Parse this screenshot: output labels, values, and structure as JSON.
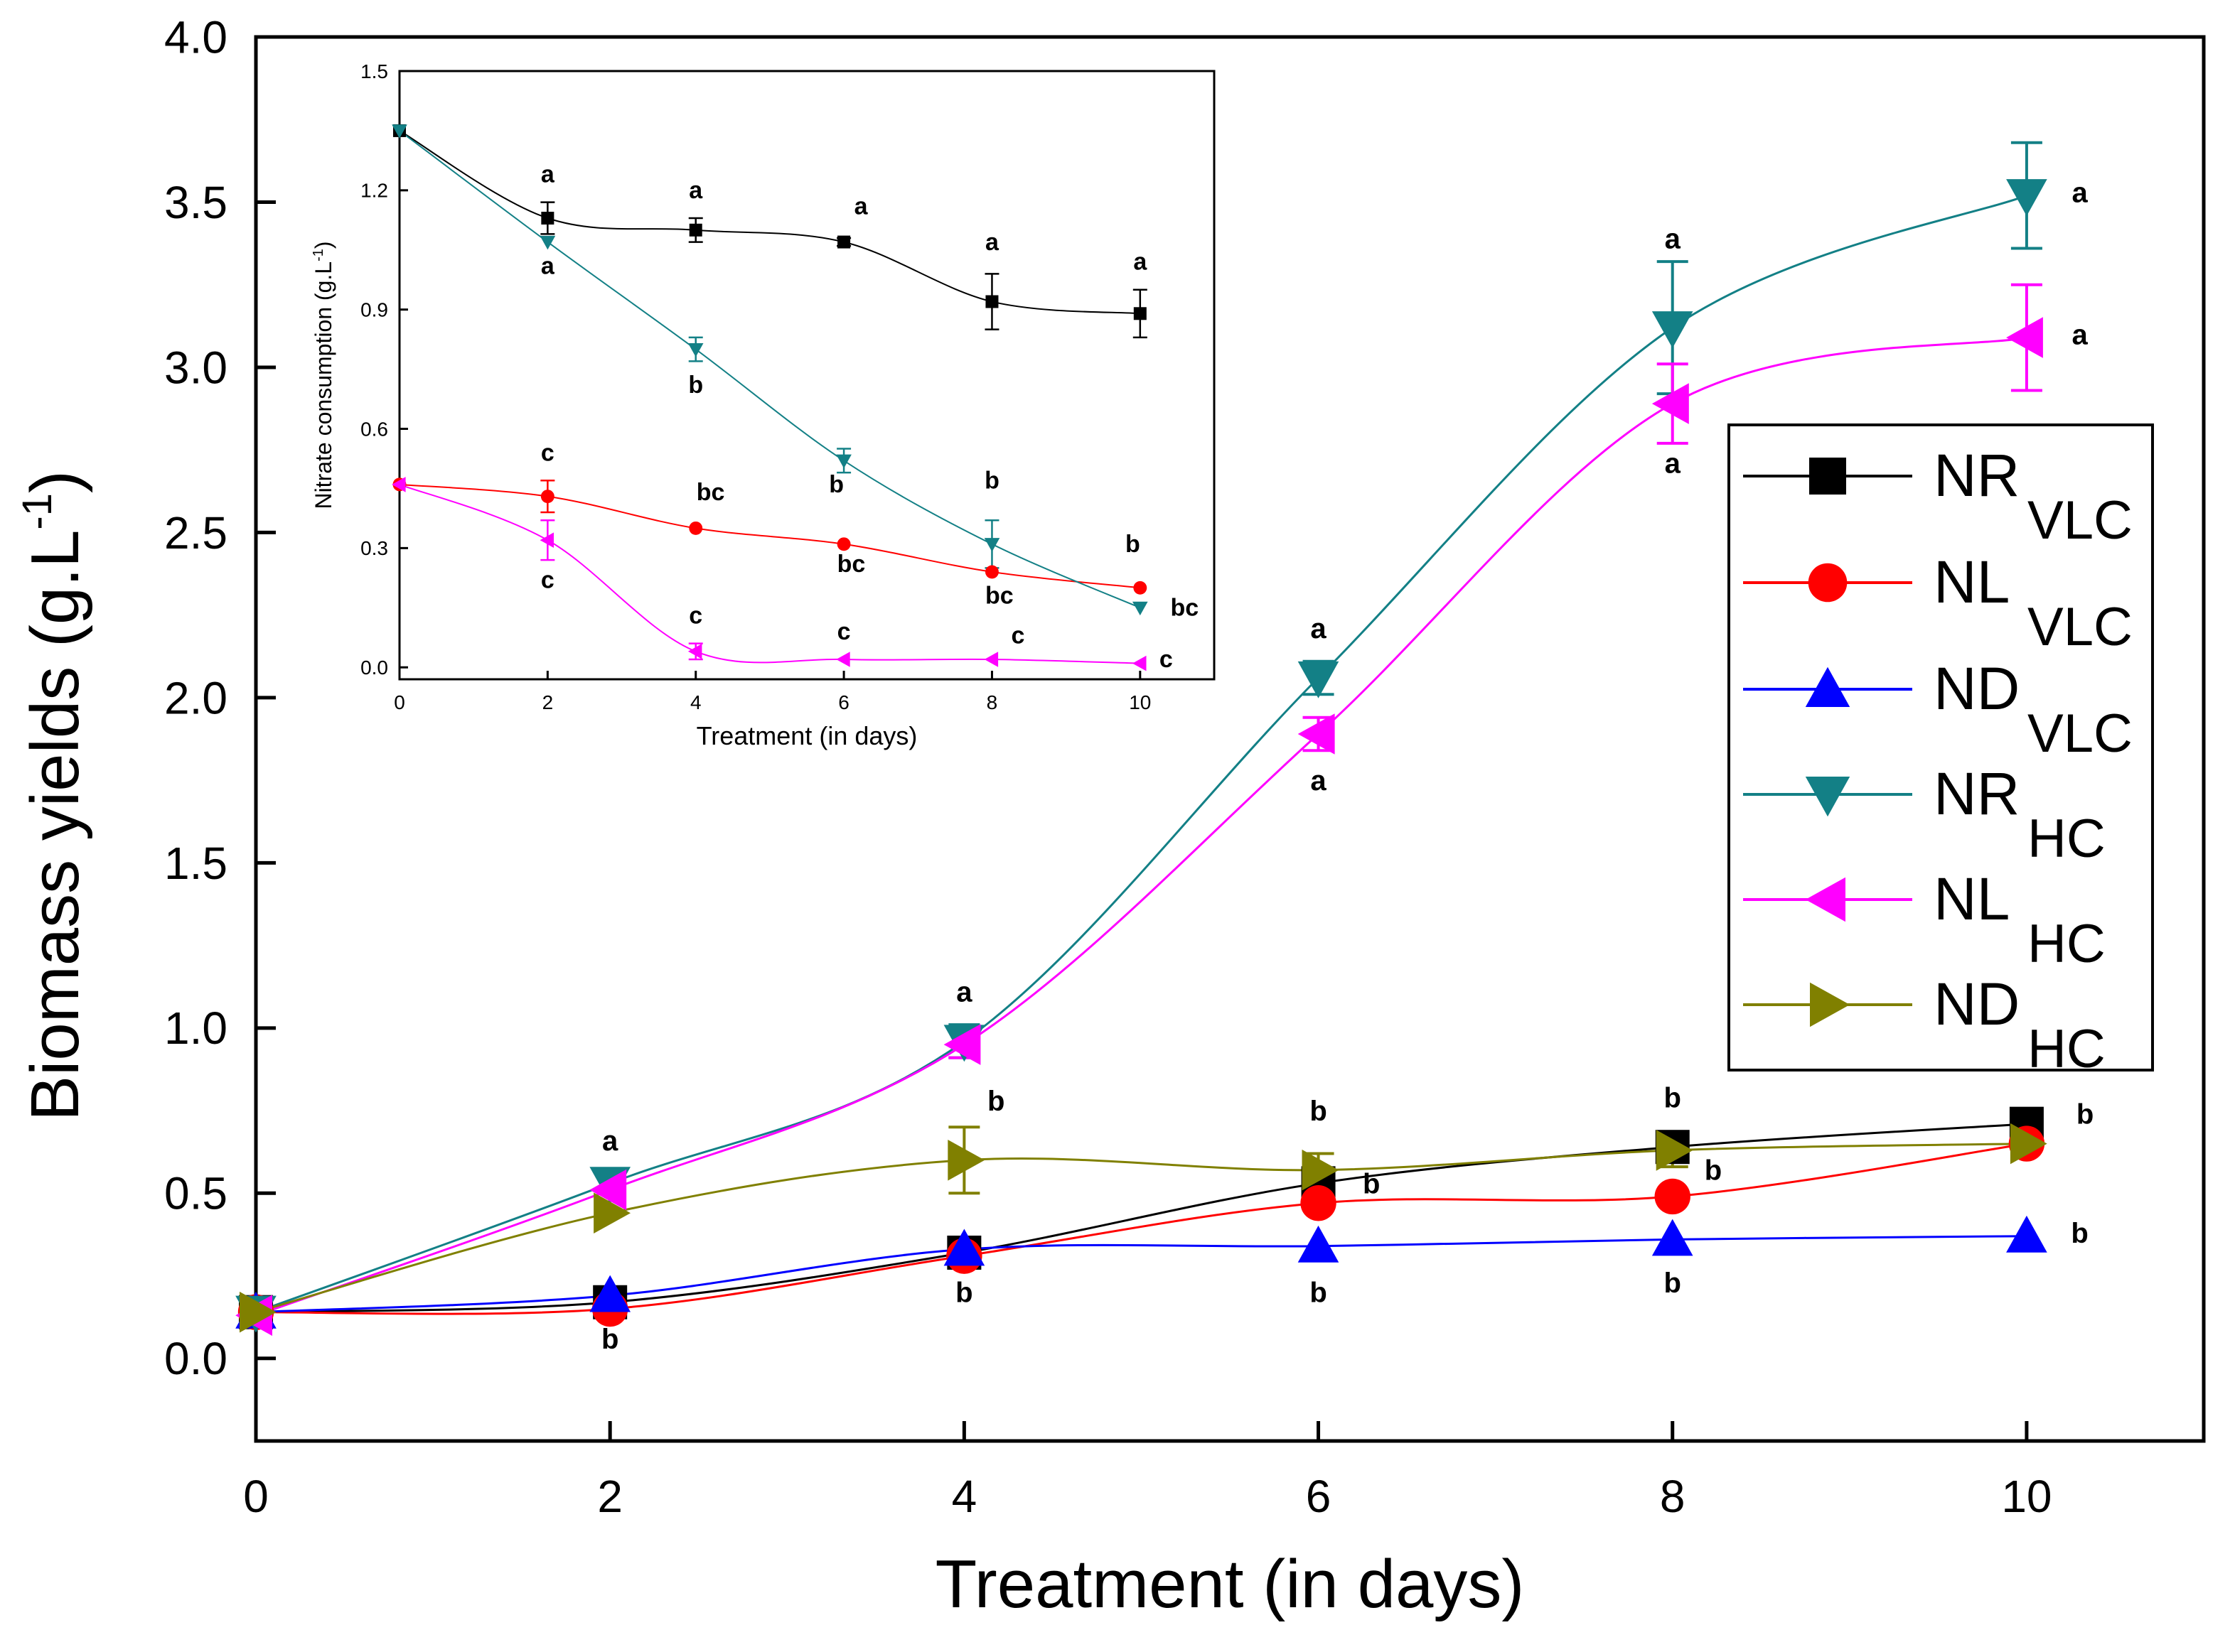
{
  "chart_data": [
    {
      "type": "line",
      "id": "main",
      "title": "",
      "xlabel": "Treatment (in days)",
      "ylabel": "Biomass yields (g.L",
      "ylabel_sup": "-1",
      "ylabel_close": ")",
      "xlim": [
        0,
        11
      ],
      "ylim": [
        -0.25,
        4.0
      ],
      "xticks": [
        0,
        2,
        4,
        6,
        8,
        10
      ],
      "xtick_labels": [
        "0",
        "2",
        "4",
        "6",
        "8",
        "10"
      ],
      "yticks": [
        0.0,
        0.5,
        1.0,
        1.5,
        2.0,
        2.5,
        3.0,
        3.5,
        4.0
      ],
      "ytick_labels": [
        "0.0",
        "0.5",
        "1.0",
        "1.5",
        "2.0",
        "2.5",
        "3.0",
        "3.5",
        "4.0"
      ],
      "grid": false,
      "legend_position": "right",
      "x": [
        0,
        2,
        4,
        6,
        8,
        10
      ],
      "series": [
        {
          "name": "NR",
          "subscript": "VLC",
          "color": "#000000",
          "marker": "square",
          "values": [
            0.14,
            0.17,
            0.32,
            0.53,
            0.64,
            0.71
          ],
          "errors": [
            0,
            0,
            0,
            0,
            0,
            0
          ]
        },
        {
          "name": "NL",
          "subscript": "VLC",
          "color": "#ff0000",
          "marker": "circle",
          "values": [
            0.14,
            0.15,
            0.31,
            0.47,
            0.49,
            0.65
          ],
          "errors": [
            0,
            0,
            0,
            0,
            0,
            0
          ]
        },
        {
          "name": "ND",
          "subscript": "VLC",
          "color": "#0000ff",
          "marker": "triangle-up",
          "values": [
            0.14,
            0.19,
            0.33,
            0.34,
            0.36,
            0.37
          ],
          "errors": [
            0,
            0,
            0,
            0,
            0,
            0
          ]
        },
        {
          "name": "NR",
          "subscript": "HC",
          "color": "#138086",
          "marker": "triangle-down",
          "values": [
            0.14,
            0.53,
            0.96,
            2.06,
            3.12,
            3.52
          ],
          "errors": [
            0,
            0,
            0.05,
            0.05,
            0.2,
            0.16
          ]
        },
        {
          "name": "NL",
          "subscript": "HC",
          "color": "#ff00ff",
          "marker": "triangle-left",
          "values": [
            0.13,
            0.51,
            0.95,
            1.89,
            2.89,
            3.09
          ],
          "errors": [
            0,
            0,
            0.04,
            0.05,
            0.12,
            0.16
          ]
        },
        {
          "name": "ND",
          "subscript": "HC",
          "color": "#808000",
          "marker": "triangle-right",
          "values": [
            0.14,
            0.44,
            0.6,
            0.57,
            0.63,
            0.65
          ],
          "errors": [
            0,
            0,
            0.1,
            0.05,
            0.05,
            0
          ]
        }
      ],
      "annotations": [
        {
          "text": "a",
          "x": 2,
          "y": 0.63
        },
        {
          "text": "b",
          "x": 2,
          "y": 0.03
        },
        {
          "text": "a",
          "x": 4,
          "y": 1.08
        },
        {
          "text": "b",
          "x": 4.18,
          "y": 0.75
        },
        {
          "text": "b",
          "x": 4,
          "y": 0.17
        },
        {
          "text": "a",
          "x": 6,
          "y": 2.18
        },
        {
          "text": "a",
          "x": 6,
          "y": 1.72
        },
        {
          "text": "b",
          "x": 6,
          "y": 0.72
        },
        {
          "text": "b",
          "x": 6.3,
          "y": 0.5
        },
        {
          "text": "b",
          "x": 6,
          "y": 0.17
        },
        {
          "text": "a",
          "x": 8,
          "y": 3.36
        },
        {
          "text": "a",
          "x": 8,
          "y": 2.68
        },
        {
          "text": "b",
          "x": 8,
          "y": 0.76
        },
        {
          "text": "b",
          "x": 8.23,
          "y": 0.54
        },
        {
          "text": "b",
          "x": 8,
          "y": 0.2
        },
        {
          "text": "a",
          "x": 10.3,
          "y": 3.5
        },
        {
          "text": "a",
          "x": 10.3,
          "y": 3.07
        },
        {
          "text": "b",
          "x": 10.33,
          "y": 0.71
        },
        {
          "text": "b",
          "x": 10.3,
          "y": 0.35
        }
      ]
    },
    {
      "type": "line",
      "id": "inset",
      "title": "",
      "xlabel": "Treatment (in days)",
      "ylabel": "Nitrate consumption (g.L",
      "ylabel_sup": "-1",
      "ylabel_close": ")",
      "xlim": [
        0,
        11
      ],
      "ylim": [
        -0.03,
        1.5
      ],
      "xticks": [
        0,
        2,
        4,
        6,
        8,
        10
      ],
      "xtick_labels": [
        "0",
        "2",
        "4",
        "6",
        "8",
        "10"
      ],
      "yticks": [
        0.0,
        0.3,
        0.6,
        0.9,
        1.2,
        1.5
      ],
      "ytick_labels": [
        "0.0",
        "0.3",
        "0.6",
        "0.9",
        "1.2",
        "1.5"
      ],
      "grid": false,
      "legend_position": "none",
      "x": [
        0,
        2,
        4,
        6,
        8,
        10
      ],
      "series": [
        {
          "name": "NR",
          "subscript": "VLC",
          "color": "#000000",
          "marker": "square",
          "values": [
            1.35,
            1.13,
            1.1,
            1.07,
            0.92,
            0.89
          ],
          "errors": [
            0,
            0.04,
            0.03,
            0.01,
            0.07,
            0.06
          ]
        },
        {
          "name": "NL",
          "subscript": "VLC",
          "color": "#ff0000",
          "marker": "circle",
          "values": [
            0.46,
            0.43,
            0.35,
            0.31,
            0.24,
            0.2
          ],
          "errors": [
            0,
            0.04,
            0,
            0,
            0,
            0
          ]
        },
        {
          "name": "NR",
          "subscript": "HC",
          "color": "#138086",
          "marker": "triangle-down",
          "values": [
            1.35,
            1.07,
            0.8,
            0.52,
            0.31,
            0.15
          ],
          "errors": [
            0,
            0,
            0.03,
            0.03,
            0.06,
            0
          ]
        },
        {
          "name": "NL",
          "subscript": "HC",
          "color": "#ff00ff",
          "marker": "triangle-left",
          "values": [
            0.46,
            0.32,
            0.04,
            0.02,
            0.02,
            0.01
          ],
          "errors": [
            0,
            0.05,
            0.02,
            0,
            0,
            0
          ]
        }
      ],
      "annotations": [
        {
          "text": "a",
          "x": 2,
          "y": 1.22
        },
        {
          "text": "a",
          "x": 2,
          "y": 0.99
        },
        {
          "text": "a",
          "x": 4,
          "y": 1.18
        },
        {
          "text": "b",
          "x": 4,
          "y": 0.69
        },
        {
          "text": "a",
          "x": 6.23,
          "y": 1.14
        },
        {
          "text": "a",
          "x": 8,
          "y": 1.05
        },
        {
          "text": "a",
          "x": 10,
          "y": 1.0
        },
        {
          "text": "c",
          "x": 2,
          "y": 0.52
        },
        {
          "text": "c",
          "x": 2,
          "y": 0.2
        },
        {
          "text": "bc",
          "x": 4.2,
          "y": 0.42
        },
        {
          "text": "c",
          "x": 4,
          "y": 0.11
        },
        {
          "text": "b",
          "x": 5.9,
          "y": 0.44
        },
        {
          "text": "bc",
          "x": 6.1,
          "y": 0.24
        },
        {
          "text": "c",
          "x": 6,
          "y": 0.07
        },
        {
          "text": "b",
          "x": 8,
          "y": 0.45
        },
        {
          "text": "bc",
          "x": 8.1,
          "y": 0.16
        },
        {
          "text": "c",
          "x": 8.35,
          "y": 0.06
        },
        {
          "text": "b",
          "x": 9.9,
          "y": 0.29
        },
        {
          "text": "bc",
          "x": 10.6,
          "y": 0.13
        },
        {
          "text": "c",
          "x": 10.35,
          "y": 0.0
        }
      ]
    }
  ]
}
